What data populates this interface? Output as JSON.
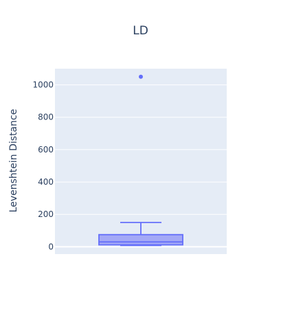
{
  "chart_data": {
    "type": "box",
    "title": "LD",
    "xlabel": "",
    "ylabel": "Levenshtein Distance",
    "ylim": [
      -45,
      1100
    ],
    "yticks": [
      0,
      200,
      400,
      600,
      800,
      1000
    ],
    "grid": true,
    "colors": {
      "plot_bg": "#e5ecf6",
      "grid": "#ffffff",
      "box_line": "#636efa",
      "box_fill": "#a4a9f6",
      "text": "#2a3f5f"
    },
    "box": {
      "lower_fence": 8,
      "q1": 12,
      "median": 30,
      "q3": 75,
      "upper_fence": 150,
      "outliers": [
        1050
      ]
    }
  }
}
